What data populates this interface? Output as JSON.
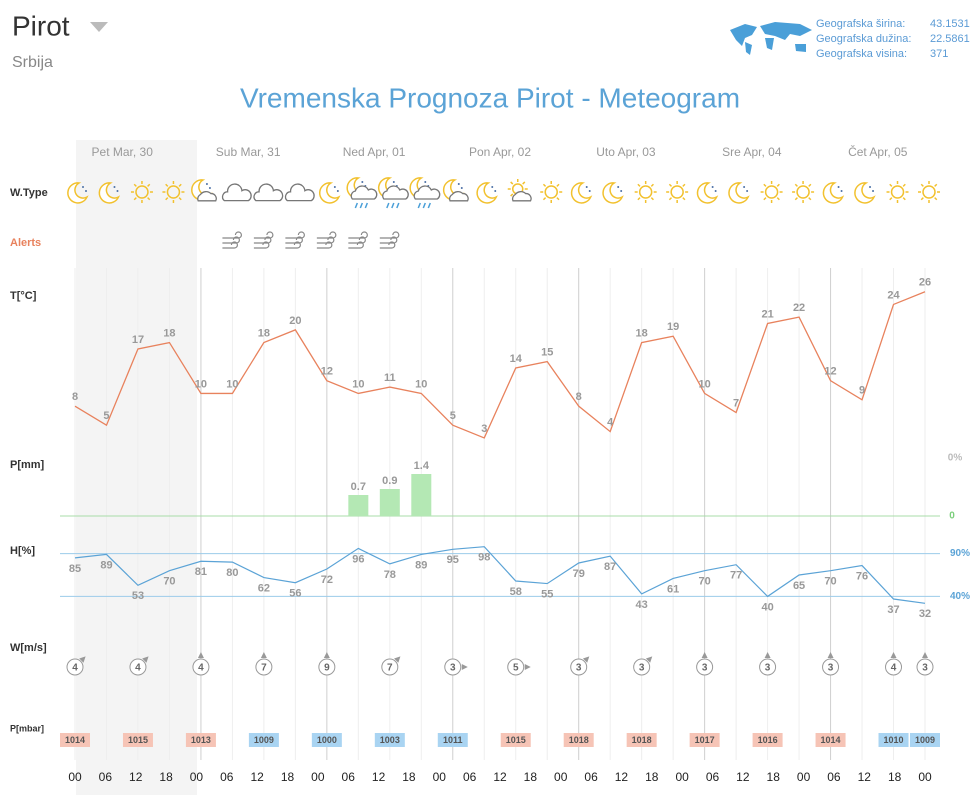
{
  "header": {
    "city": "Pirot",
    "country": "Srbija"
  },
  "coordinates": [
    {
      "label": "Geografska širina:",
      "value": 43.1531
    },
    {
      "label": "Geografska dužina:",
      "value": 22.5861
    },
    {
      "label": "Geografska visina:",
      "value": 371
    }
  ],
  "chart_data": {
    "type": "meteogram",
    "title": "Vremenska Prognoza Pirot - Meteogram",
    "days": [
      "Pet Mar, 30",
      "Sub Mar, 31",
      "Ned Apr, 01",
      "Pon Apr, 02",
      "Uto Apr, 03",
      "Sre Apr, 04",
      "Čet Apr, 05"
    ],
    "x": [
      "00",
      "06",
      "12",
      "18",
      "00",
      "06",
      "12",
      "18",
      "00",
      "06",
      "12",
      "18",
      "00",
      "06",
      "12",
      "18",
      "00",
      "06",
      "12",
      "18",
      "00",
      "06",
      "12",
      "18",
      "00",
      "06",
      "12",
      "18",
      "00"
    ],
    "row_labels": {
      "weather": "W.Type",
      "alerts": "Alerts",
      "temperature": "T[°C]",
      "precipitation": "P[mm]",
      "humidity": "H[%]",
      "wind": "W[m/s]",
      "pressure": "P[mbar]"
    },
    "temperature": {
      "color": "#e8825d",
      "ylim": [
        0,
        28
      ],
      "values": [
        8,
        5,
        17,
        18,
        10,
        10,
        18,
        20,
        12,
        10,
        11,
        10,
        5,
        3,
        14,
        15,
        8,
        4,
        18,
        19,
        10,
        7,
        21,
        22,
        12,
        9,
        24,
        26
      ]
    },
    "precipitation": {
      "color": "#b4e8b4",
      "axis_color": "#a8dca8",
      "ylim": [
        0,
        1.7
      ],
      "yticks": [
        0
      ],
      "corner_label": "0%",
      "values": [
        null,
        null,
        null,
        null,
        null,
        null,
        null,
        null,
        null,
        0.7,
        0.9,
        1.4,
        null,
        null,
        null,
        null,
        null,
        null,
        null,
        null,
        null,
        null,
        null,
        null,
        null,
        null,
        null,
        null
      ]
    },
    "humidity": {
      "color": "#5ba3d6",
      "ylim": [
        30,
        100
      ],
      "yticks": [
        {
          "value": 90,
          "label": "90%"
        },
        {
          "value": 40,
          "label": "40%"
        }
      ],
      "values": [
        85,
        89,
        53,
        70,
        81,
        80,
        62,
        56,
        72,
        96,
        78,
        89,
        95,
        98,
        58,
        55,
        79,
        87,
        43,
        61,
        70,
        77,
        40,
        65,
        70,
        76,
        37,
        32
      ]
    },
    "wind": {
      "color": "#999999",
      "values": [
        4,
        null,
        4,
        null,
        4,
        null,
        7,
        null,
        9,
        null,
        7,
        null,
        3,
        null,
        5,
        null,
        3,
        null,
        3,
        null,
        3,
        null,
        3,
        null,
        3,
        null,
        4,
        3
      ]
    },
    "pressure": {
      "values": [
        1014,
        null,
        1015,
        null,
        1013,
        null,
        1009,
        null,
        1000,
        null,
        1003,
        null,
        1011,
        null,
        1015,
        null,
        1018,
        null,
        1018,
        null,
        1017,
        null,
        1016,
        null,
        1014,
        null,
        1010,
        1009
      ],
      "colors": [
        "#f6c4b6",
        null,
        "#f6c4b6",
        null,
        "#f6c4b6",
        null,
        "#a9d4f2",
        null,
        "#a9d4f2",
        null,
        "#a9d4f2",
        null,
        "#a9d4f2",
        null,
        "#f6c4b6",
        null,
        "#f6c4b6",
        null,
        "#f6c4b6",
        null,
        "#f6c4b6",
        null,
        "#f6c4b6",
        null,
        "#f6c4b6",
        null,
        "#a9d4f2",
        "#a9d4f2"
      ]
    }
  }
}
